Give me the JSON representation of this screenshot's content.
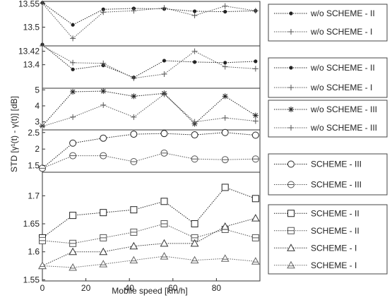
{
  "chart_data": {
    "type": "line",
    "xlabel": "Mobile speed [km/h]",
    "ylabel": "STD [γ¹(t) - γ(t)] [dB]",
    "x": [
      0,
      14,
      28,
      42,
      56,
      70,
      84,
      98
    ],
    "x_ticks": [
      "0",
      "20",
      "40",
      "60",
      "80"
    ],
    "xlim": [
      0,
      100
    ],
    "grid": false,
    "legend_placement": "right",
    "panels": [
      {
        "ylim": [
          13.46,
          13.555
        ],
        "y_ticks": [
          13.5,
          13.55
        ],
        "y_tick_labels": [
          "13.5",
          "13.55"
        ],
        "series": [
          {
            "name": "w/o SCHEME - II",
            "marker": "dot",
            "values": [
              13.552,
              13.505,
              13.538,
              13.54,
              13.539,
              13.534,
              13.533,
              13.535
            ]
          },
          {
            "name": "w/o SCHEME - I",
            "marker": "plus",
            "values": [
              13.551,
              13.476,
              13.532,
              13.535,
              13.541,
              13.525,
              13.545,
              13.535
            ]
          }
        ]
      },
      {
        "ylim": [
          13.365,
          13.428
        ],
        "y_ticks": [
          13.4,
          13.42
        ],
        "y_tick_labels": [
          "13.4",
          "13.42"
        ],
        "series": [
          {
            "name": "w/o SCHEME - II",
            "marker": "dot",
            "values": [
              13.43,
              13.393,
              13.399,
              13.381,
              13.406,
              13.404,
              13.403,
              13.405
            ]
          },
          {
            "name": "w/o SCHEME - I",
            "marker": "plus",
            "values": [
              13.428,
              13.403,
              13.402,
              13.38,
              13.386,
              13.42,
              13.397,
              13.394
            ]
          }
        ]
      },
      {
        "ylim": [
          2.5,
          5.1
        ],
        "y_ticks": [
          3,
          4,
          5
        ],
        "y_tick_labels": [
          "3",
          "4",
          "5"
        ],
        "series": [
          {
            "name": "w/o SCHEME - III",
            "marker": "asterisk",
            "values": [
              2.75,
              4.88,
              4.92,
              4.6,
              4.78,
              2.88,
              4.6,
              3.4
            ]
          },
          {
            "name": "w/o SCHEME - III",
            "marker": "plus",
            "values": [
              2.72,
              3.3,
              4.05,
              3.3,
              4.72,
              3.0,
              3.25,
              3.05
            ]
          }
        ]
      },
      {
        "ylim": [
          1.3,
          2.58
        ],
        "y_ticks": [
          1.5,
          2,
          2.5
        ],
        "y_tick_labels": [
          "1.5",
          "2",
          "2.5"
        ],
        "series": [
          {
            "name": "SCHEME - III",
            "marker": "circle",
            "values": [
              1.42,
              2.18,
              2.33,
              2.45,
              2.47,
              2.43,
              2.5,
              2.42
            ]
          },
          {
            "name": "SCHEME - III",
            "marker": "circle-bar",
            "values": [
              1.42,
              1.8,
              1.8,
              1.62,
              1.88,
              1.7,
              1.68,
              1.7
            ]
          }
        ]
      },
      {
        "ylim": [
          1.548,
          1.742
        ],
        "y_ticks": [
          1.55,
          1.6,
          1.65,
          1.7
        ],
        "y_tick_labels": [
          "1.55",
          "1.6",
          "1.65",
          "1.7"
        ],
        "series": [
          {
            "name": "SCHEME - II",
            "marker": "square",
            "values": [
              1.625,
              1.665,
              1.67,
              1.675,
              1.69,
              1.65,
              1.715,
              1.695
            ]
          },
          {
            "name": "SCHEME - II",
            "marker": "square-bar",
            "values": [
              1.62,
              1.615,
              1.625,
              1.635,
              1.65,
              1.625,
              1.64,
              1.625
            ]
          },
          {
            "name": "SCHEME - I",
            "marker": "triangle",
            "values": [
              1.575,
              1.6,
              1.6,
              1.61,
              1.615,
              1.615,
              1.645,
              1.66
            ]
          },
          {
            "name": "SCHEME - I",
            "marker": "triangle-bar",
            "values": [
              1.575,
              1.572,
              1.578,
              1.585,
              1.592,
              1.585,
              1.588,
              1.583
            ]
          }
        ]
      }
    ]
  }
}
